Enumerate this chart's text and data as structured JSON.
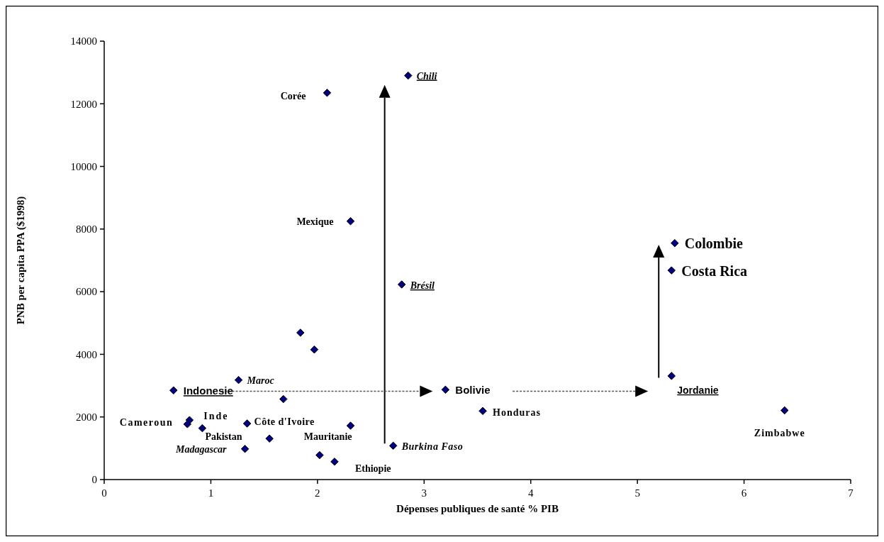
{
  "chart_data": {
    "type": "scatter",
    "xlabel": "Dépenses publiques de santé % PIB",
    "ylabel": "PNB per capita PPA ($1998)",
    "xlim": [
      0,
      7
    ],
    "xticks": [
      0,
      1,
      2,
      3,
      4,
      5,
      6,
      7
    ],
    "ylim": [
      0,
      14000
    ],
    "yticks": [
      0,
      2000,
      4000,
      6000,
      8000,
      10000,
      12000,
      14000
    ],
    "grid": false,
    "marker": "diamond",
    "series": [
      {
        "color": "#000080",
        "x": [
          2.85,
          2.09,
          2.31,
          2.79,
          1.84,
          1.97,
          1.26,
          0.65,
          1.68,
          0.8,
          0.78,
          0.92,
          1.34,
          1.55,
          1.32,
          2.02,
          2.16,
          2.31,
          2.71,
          3.2,
          3.55,
          5.35,
          5.32,
          5.32,
          6.38
        ],
        "values": [
          12900,
          12350,
          8250,
          6230,
          4690,
          4150,
          3180,
          2850,
          2570,
          1900,
          1770,
          1640,
          1790,
          1310,
          980,
          780,
          570,
          1720,
          1080,
          2870,
          2190,
          7550,
          6680,
          3310,
          2210
        ]
      }
    ],
    "annotations": [
      {
        "text": "Chili",
        "x": 2.85,
        "y": 12900
      },
      {
        "text": "Corée",
        "x": 2.09,
        "y": 12350
      },
      {
        "text": "Mexique",
        "x": 2.31,
        "y": 8250
      },
      {
        "text": "Brésil",
        "x": 2.79,
        "y": 6230
      },
      {
        "text": "Maroc",
        "x": 1.26,
        "y": 3180
      },
      {
        "text": "Indonesie",
        "x": 0.65,
        "y": 2850
      },
      {
        "text": "Cameroun",
        "x": 0.78,
        "y": 1770
      },
      {
        "text": "Inde",
        "x": 0.8,
        "y": 1900
      },
      {
        "text": "Pakistan",
        "x": 0.92,
        "y": 1640
      },
      {
        "text": "Côte d'Ivoire",
        "x": 1.34,
        "y": 1790
      },
      {
        "text": "Madagascar",
        "x": 1.32,
        "y": 980
      },
      {
        "text": "Mauritanie",
        "x": 2.31,
        "y": 1720
      },
      {
        "text": "Ethiopie",
        "x": 2.16,
        "y": 570
      },
      {
        "text": "Burkina Faso",
        "x": 2.71,
        "y": 1080
      },
      {
        "text": "Bolivie",
        "x": 3.2,
        "y": 2870
      },
      {
        "text": "Honduras",
        "x": 3.55,
        "y": 2190
      },
      {
        "text": "Colombie",
        "x": 5.35,
        "y": 7550
      },
      {
        "text": "Costa Rica",
        "x": 5.32,
        "y": 6680
      },
      {
        "text": "Jordanie",
        "x": 5.32,
        "y": 3310
      },
      {
        "text": "Zimbabwe",
        "x": 6.38,
        "y": 2210
      }
    ]
  }
}
